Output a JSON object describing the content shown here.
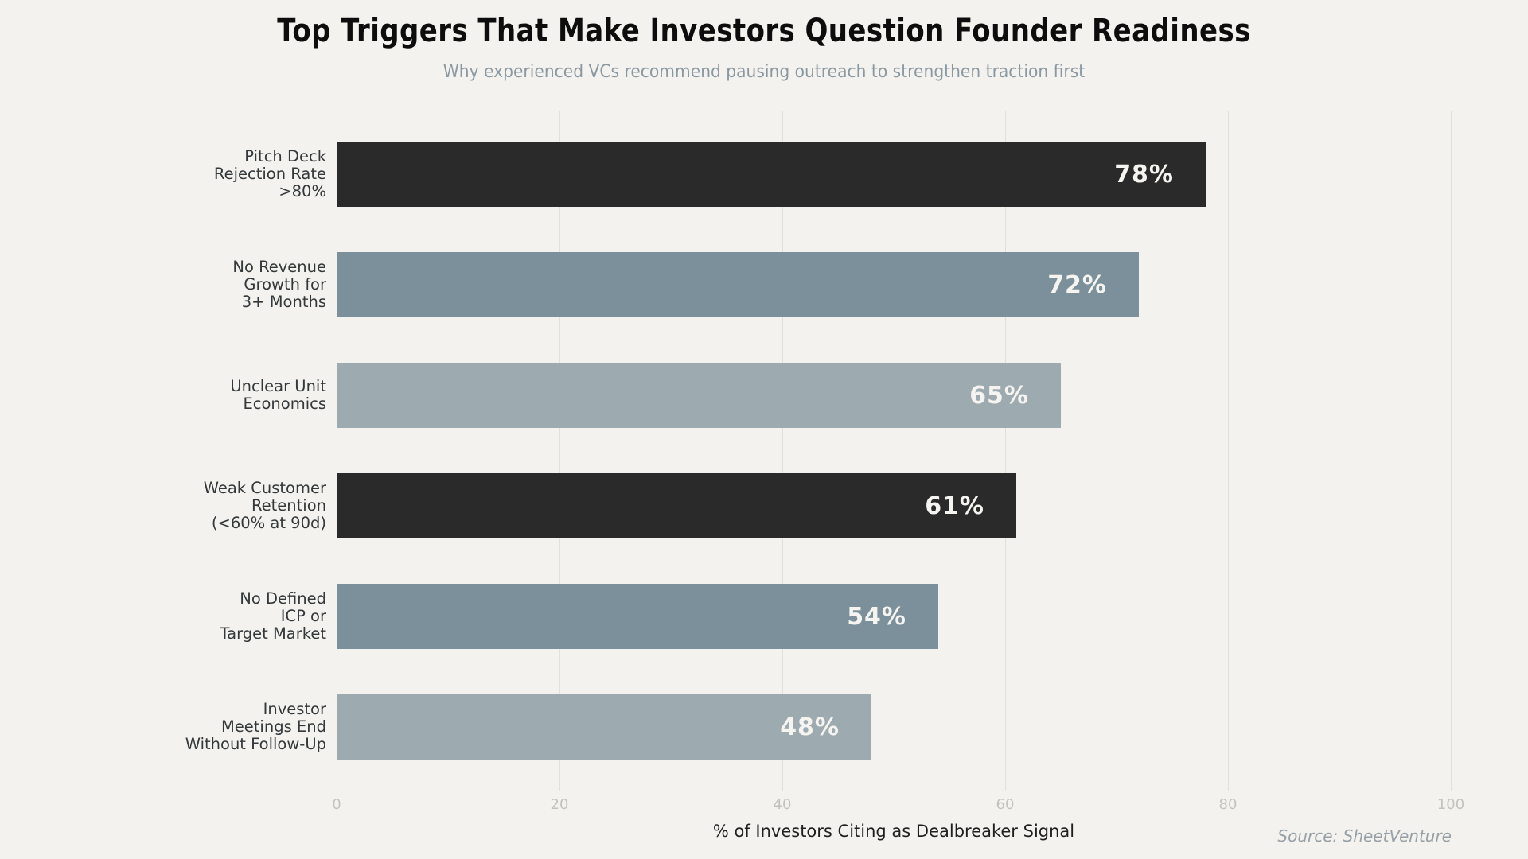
{
  "chart_data": {
    "type": "bar",
    "orientation": "horizontal",
    "title": "Top Triggers That Make Investors Question Founder Readiness",
    "subtitle": "Why experienced VCs recommend pausing outreach to strengthen traction first",
    "categories": [
      "Pitch Deck\nRejection Rate\n>80%",
      "No Revenue\nGrowth for\n3+ Months",
      "Unclear Unit\nEconomics",
      "Weak Customer\nRetention\n(<60% at 90d)",
      "No Defined\nICP or\nTarget Market",
      "Investor\nMeetings End\nWithout Follow-Up"
    ],
    "values": [
      78,
      72,
      65,
      61,
      54,
      48
    ],
    "value_labels": [
      "78%",
      "72%",
      "65%",
      "61%",
      "54%",
      "48%"
    ],
    "bar_colors": [
      "#2a2a2a",
      "#7b909a",
      "#9dabb0",
      "#2a2a2a",
      "#7b909a",
      "#9dabb0"
    ],
    "xlabel": "% of Investors Citing as Dealbreaker Signal",
    "xlim": [
      0,
      100
    ],
    "xticks": [
      0,
      20,
      40,
      60,
      80,
      100
    ],
    "grid": true,
    "legend": "none",
    "source": "Source: SheetVenture",
    "colors": {
      "background": "#f4f2ee",
      "gridline": "#e2e0db",
      "title_text": "#0d0d0d",
      "subtitle_text": "#8a98a2",
      "category_text": "#33383b",
      "value_text": "#f6f4f0",
      "tick_text": "#c4c2be",
      "xlabel_text": "#1f1f1f",
      "source_text": "#96a0a6"
    }
  }
}
